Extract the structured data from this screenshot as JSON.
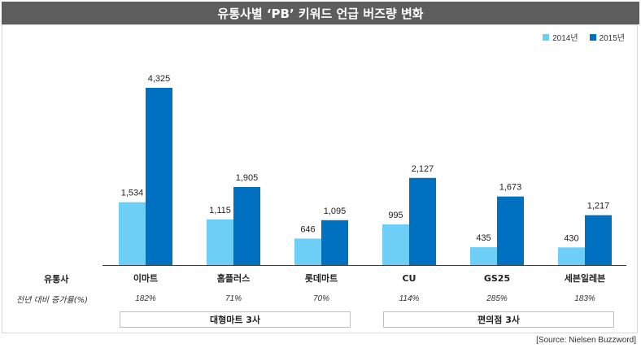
{
  "title": "유통사별 ‘PB’ 키워드 언급 버즈량 변화",
  "row_labels": {
    "retailer": "유통사",
    "growth": "전년 대비 증가율(%)"
  },
  "colors": {
    "s2014": "#6dcff6",
    "s2015": "#0070c0",
    "title_bg": "#5d5d5d"
  },
  "chart_data": {
    "type": "bar",
    "categories": [
      "이마트",
      "홈플러스",
      "롯데마트",
      "CU",
      "GS25",
      "세븐일레븐"
    ],
    "series": [
      {
        "name": "2014년",
        "values": [
          1534,
          1115,
          646,
          995,
          435,
          430
        ],
        "labels": [
          "1,534",
          "1,115",
          "646",
          "995",
          "435",
          "430"
        ]
      },
      {
        "name": "2015년",
        "values": [
          4325,
          1905,
          1095,
          2127,
          1673,
          1217
        ],
        "labels": [
          "4,325",
          "1,905",
          "1,095",
          "2,127",
          "1,673",
          "1,217"
        ]
      }
    ],
    "growth": [
      "182%",
      "71%",
      "70%",
      "114%",
      "285%",
      "183%"
    ],
    "ylim": [
      0,
      4325
    ],
    "grid": false,
    "legend": "top-right"
  },
  "groups": [
    "대형마트 3사",
    "편의점 3사"
  ],
  "source": "[Source: Nielsen Buzzword]"
}
